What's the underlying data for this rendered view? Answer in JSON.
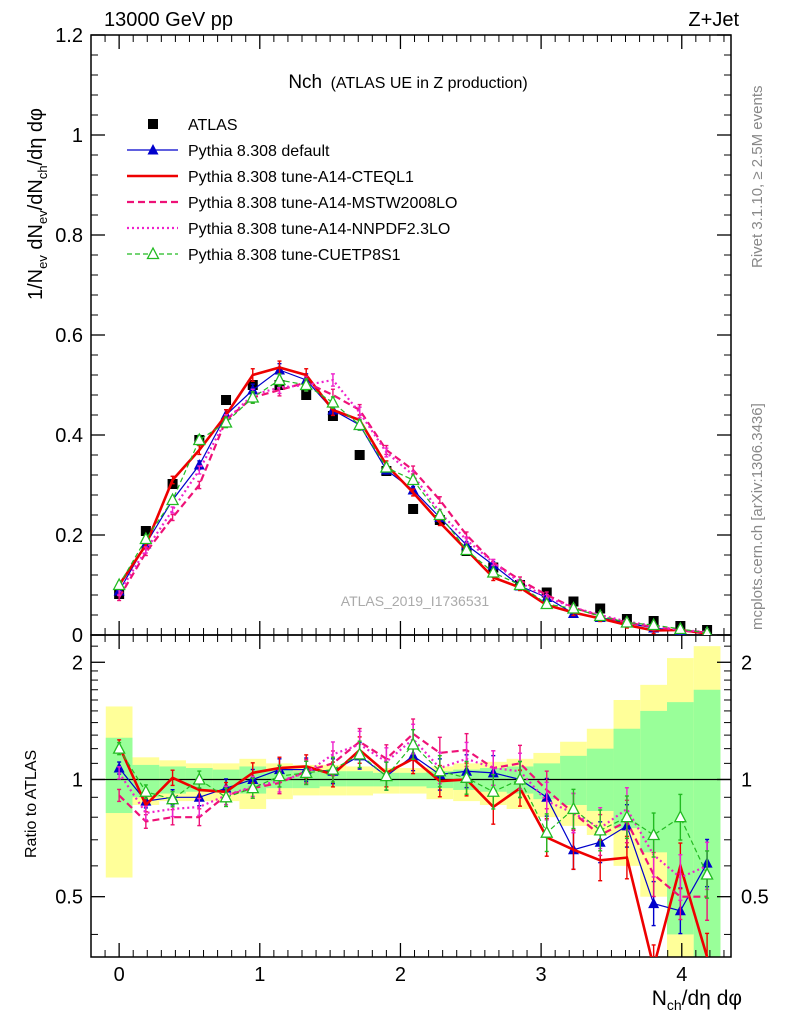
{
  "header": {
    "left": "13000 GeV pp",
    "right": "Z+Jet"
  },
  "plot_title": {
    "main": "Nch",
    "sub": "(ATLAS UE in Z production)"
  },
  "side_labels": {
    "rivet": "Rivet 3.1.10, ≥ 2.5M events",
    "mcplots": "mcplots.cern.ch [arXiv:1306.3436]"
  },
  "watermark": "ATLAS_2019_I1736531",
  "axis_labels": {
    "y_main": "1/Nev dNev/dNch/dη dφ",
    "y_ratio": "Ratio to ATLAS",
    "x": "Nch/dη dφ"
  },
  "colors": {
    "atlas": "#000000",
    "default": "#0000cc",
    "cteql1": "#ee0000",
    "mstw": "#ee1177",
    "nnpdf": "#ee22cc",
    "cuetp8s1": "#22bb22",
    "band_yellow": "#ffff99",
    "band_green": "#99ff99"
  },
  "chart_data": [
    {
      "type": "scatter",
      "panel": "main",
      "x": [
        0.0,
        0.19,
        0.38,
        0.57,
        0.76,
        0.95,
        1.14,
        1.33,
        1.52,
        1.71,
        1.9,
        2.09,
        2.28,
        2.47,
        2.66,
        2.85,
        3.04,
        3.23,
        3.42,
        3.61,
        3.8,
        3.99,
        4.18
      ],
      "xlim": [
        -0.2,
        4.35
      ],
      "ylim": [
        0,
        1.2
      ],
      "yticks": [
        0,
        0.2,
        0.4,
        0.6,
        0.8,
        1,
        1.2
      ],
      "ytick_labels": [
        "0",
        "0.2",
        "0.4",
        "0.6",
        "0.8",
        "1",
        "1.2"
      ],
      "series": [
        {
          "name": "ATLAS",
          "key": "atlas",
          "style": "square",
          "values": [
            0.082,
            0.208,
            0.302,
            0.39,
            0.47,
            0.5,
            0.5,
            0.48,
            0.438,
            0.36,
            0.328,
            0.252,
            0.23,
            0.168,
            0.135,
            0.1,
            0.085,
            0.067,
            0.053,
            0.032,
            0.028,
            0.018,
            0.01
          ]
        },
        {
          "name": "Pythia 8.308 default",
          "key": "default",
          "style": "solid-triangle",
          "values": [
            0.088,
            0.182,
            0.27,
            0.34,
            0.44,
            0.49,
            0.53,
            0.51,
            0.45,
            0.42,
            0.33,
            0.29,
            0.235,
            0.18,
            0.14,
            0.098,
            0.075,
            0.043,
            0.035,
            0.024,
            0.014,
            0.008,
            0.006
          ]
        },
        {
          "name": "Pythia 8.308 tune-A14-CTEQL1",
          "key": "cteql1",
          "style": "thick",
          "values": [
            0.1,
            0.18,
            0.31,
            0.37,
            0.44,
            0.52,
            0.535,
            0.52,
            0.45,
            0.43,
            0.34,
            0.285,
            0.225,
            0.17,
            0.115,
            0.095,
            0.06,
            0.045,
            0.033,
            0.02,
            0.009,
            0.01,
            0.003
          ]
        },
        {
          "name": "Pythia 8.308 tune-A14-MSTW2008LO",
          "key": "mstw",
          "style": "dashed",
          "values": [
            0.075,
            0.165,
            0.235,
            0.3,
            0.43,
            0.475,
            0.49,
            0.505,
            0.48,
            0.45,
            0.37,
            0.33,
            0.27,
            0.2,
            0.145,
            0.11,
            0.08,
            0.055,
            0.038,
            0.025,
            0.016,
            0.009,
            0.005
          ]
        },
        {
          "name": "Pythia 8.308 tune-A14-NNPDF2.3LO",
          "key": "nnpdf",
          "style": "dotted",
          "values": [
            0.085,
            0.17,
            0.25,
            0.33,
            0.43,
            0.48,
            0.495,
            0.5,
            0.51,
            0.445,
            0.365,
            0.32,
            0.245,
            0.19,
            0.145,
            0.105,
            0.075,
            0.055,
            0.04,
            0.027,
            0.018,
            0.01,
            0.006
          ]
        },
        {
          "name": "Pythia 8.308 tune-CUETP8S1",
          "key": "cuetp8s1",
          "style": "dashed-open-triangle",
          "values": [
            0.1,
            0.192,
            0.27,
            0.39,
            0.425,
            0.475,
            0.51,
            0.5,
            0.465,
            0.42,
            0.335,
            0.31,
            0.24,
            0.17,
            0.125,
            0.1,
            0.062,
            0.053,
            0.038,
            0.025,
            0.02,
            0.012,
            0.004
          ]
        }
      ]
    },
    {
      "type": "line",
      "panel": "ratio",
      "x": [
        0.0,
        0.19,
        0.38,
        0.57,
        0.76,
        0.95,
        1.14,
        1.33,
        1.52,
        1.71,
        1.9,
        2.09,
        2.28,
        2.47,
        2.66,
        2.85,
        3.04,
        3.23,
        3.42,
        3.61,
        3.8,
        3.99,
        4.18
      ],
      "xlim": [
        -0.2,
        4.35
      ],
      "ylim": [
        0.35,
        2.35
      ],
      "yticks": [
        0.5,
        1,
        2
      ],
      "ytick_labels": [
        "0.5",
        "1",
        "2"
      ],
      "xticks": [
        0,
        1,
        2,
        3,
        4
      ],
      "xtick_labels": [
        "0",
        "1",
        "2",
        "3",
        "4"
      ],
      "bands": {
        "yellow_lo": [
          0.56,
          0.86,
          0.88,
          0.88,
          0.88,
          0.84,
          0.89,
          0.91,
          0.91,
          0.91,
          0.92,
          0.92,
          0.89,
          0.88,
          0.86,
          0.84,
          0.8,
          0.76,
          0.72,
          0.6,
          0.5,
          0.35,
          0.35
        ],
        "yellow_hi": [
          1.54,
          1.14,
          1.12,
          1.1,
          1.1,
          1.13,
          1.1,
          1.09,
          1.09,
          1.08,
          1.07,
          1.07,
          1.08,
          1.1,
          1.11,
          1.13,
          1.17,
          1.25,
          1.35,
          1.6,
          1.75,
          2.05,
          2.2
        ],
        "green_lo": [
          0.82,
          0.9,
          0.92,
          0.93,
          0.93,
          0.92,
          0.95,
          0.95,
          0.96,
          0.96,
          0.96,
          0.96,
          0.95,
          0.94,
          0.93,
          0.92,
          0.89,
          0.86,
          0.83,
          0.75,
          0.65,
          0.4,
          0.35
        ],
        "green_hi": [
          1.28,
          1.09,
          1.08,
          1.07,
          1.06,
          1.08,
          1.06,
          1.05,
          1.05,
          1.05,
          1.04,
          1.04,
          1.05,
          1.06,
          1.07,
          1.08,
          1.1,
          1.15,
          1.2,
          1.35,
          1.5,
          1.58,
          1.7
        ]
      },
      "series": [
        {
          "name": "Pythia 8.308 default",
          "key": "default",
          "style": "solid-triangle",
          "values": [
            1.07,
            0.88,
            0.9,
            0.9,
            0.95,
            1.0,
            1.06,
            1.06,
            1.05,
            1.15,
            1.02,
            1.15,
            1.03,
            1.05,
            1.04,
            1.0,
            0.9,
            0.66,
            0.69,
            0.76,
            0.48,
            0.46,
            0.61
          ]
        },
        {
          "name": "Pythia 8.308 tune-A14-CTEQL1",
          "key": "cteql1",
          "style": "thick",
          "values": [
            1.22,
            0.86,
            1.01,
            0.94,
            0.93,
            1.04,
            1.07,
            1.08,
            1.03,
            1.19,
            1.04,
            1.13,
            0.99,
            1.0,
            0.85,
            0.95,
            0.71,
            0.66,
            0.62,
            0.63,
            0.33,
            0.6,
            0.35
          ]
        },
        {
          "name": "Pythia 8.308 tune-A14-MSTW2008LO",
          "key": "mstw",
          "style": "dashed",
          "values": [
            0.91,
            0.78,
            0.8,
            0.8,
            0.91,
            0.95,
            0.98,
            1.05,
            1.1,
            1.25,
            1.13,
            1.31,
            1.17,
            1.19,
            1.07,
            1.1,
            0.94,
            0.82,
            0.72,
            0.78,
            0.57,
            0.5,
            0.5
          ]
        },
        {
          "name": "Pythia 8.308 tune-A14-NNPDF2.3LO",
          "key": "nnpdf",
          "style": "dotted",
          "values": [
            1.04,
            0.82,
            0.84,
            0.85,
            0.91,
            0.96,
            0.99,
            1.04,
            1.16,
            1.23,
            1.11,
            1.27,
            1.07,
            1.13,
            1.07,
            1.05,
            0.88,
            0.82,
            0.75,
            0.84,
            0.64,
            0.56,
            0.6
          ]
        },
        {
          "name": "Pythia 8.308 tune-CUETP8S1",
          "key": "cuetp8s1",
          "style": "dashed-open-triangle",
          "values": [
            1.2,
            0.93,
            0.89,
            1.0,
            0.9,
            0.95,
            1.02,
            1.04,
            1.06,
            1.16,
            1.02,
            1.23,
            1.05,
            1.01,
            0.93,
            1.0,
            0.73,
            0.84,
            0.74,
            0.8,
            0.72,
            0.8,
            0.57
          ]
        }
      ]
    }
  ]
}
